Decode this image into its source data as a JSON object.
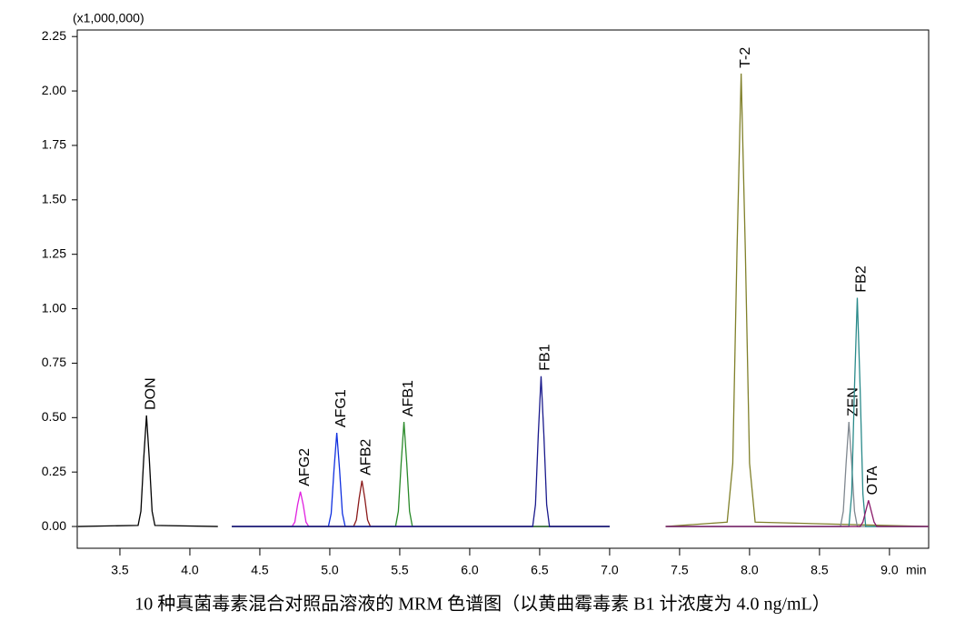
{
  "chart_data": {
    "type": "line",
    "y_unit": "(x1,000,000)",
    "x_label": "min",
    "caption": "10 种真菌毒素混合对照品溶液的 MRM 色谱图（以黄曲霉毒素 B1 计浓度为 4.0 ng/mL）",
    "xlim": [
      3.195,
      9.28
    ],
    "ylim": [
      -0.1,
      2.28
    ],
    "xticks": [
      3.5,
      {
        "value": 4,
        "label": "4.0"
      },
      4.5,
      {
        "value": 5,
        "label": "5.0"
      },
      5.5,
      {
        "value": 6,
        "label": "6.0"
      },
      6.5,
      {
        "value": 7,
        "label": "7.0"
      },
      7.5,
      {
        "value": 8,
        "label": "8.0"
      },
      8.5,
      {
        "value": 9,
        "label": "9.0"
      }
    ],
    "yticks": [
      {
        "value": 0,
        "label": "0.00"
      },
      0.25,
      {
        "value": 0.5,
        "label": "0.50"
      },
      0.75,
      {
        "value": 1,
        "label": "1.00"
      },
      1.25,
      {
        "value": 1.5,
        "label": "1.50"
      },
      1.75,
      {
        "value": 2,
        "label": "2.00"
      },
      2.25
    ],
    "series": [
      {
        "name": "DON",
        "color": "#000000",
        "x": [
          3.2,
          3.63,
          3.65,
          3.67,
          3.69,
          3.71,
          3.73,
          3.75,
          4.2
        ],
        "values": [
          0,
          0.005,
          0.07,
          0.31,
          0.51,
          0.31,
          0.07,
          0.005,
          0
        ]
      },
      {
        "name": "AFG2",
        "color": "#e020e0",
        "x": [
          4.3,
          4.73,
          4.75,
          4.77,
          4.79,
          4.81,
          4.83,
          4.85,
          7.0
        ],
        "values": [
          0,
          0,
          0.02,
          0.1,
          0.16,
          0.1,
          0.02,
          0,
          0
        ]
      },
      {
        "name": "AFG1",
        "color": "#1030e0",
        "x": [
          4.3,
          4.99,
          5.01,
          5.03,
          5.05,
          5.07,
          5.09,
          5.11,
          7.0
        ],
        "values": [
          0,
          0,
          0.06,
          0.26,
          0.43,
          0.26,
          0.06,
          0,
          0
        ]
      },
      {
        "name": "AFB2",
        "color": "#8b1a1a",
        "x": [
          4.3,
          5.17,
          5.19,
          5.21,
          5.23,
          5.25,
          5.27,
          5.29,
          7.0
        ],
        "values": [
          0,
          0,
          0.03,
          0.13,
          0.21,
          0.13,
          0.03,
          0,
          0
        ]
      },
      {
        "name": "AFB1",
        "color": "#2a8a2a",
        "x": [
          4.3,
          5.47,
          5.49,
          5.51,
          5.53,
          5.55,
          5.57,
          5.59,
          7.0
        ],
        "values": [
          0,
          0,
          0.07,
          0.29,
          0.48,
          0.29,
          0.07,
          0,
          0
        ]
      },
      {
        "name": "FB1",
        "color": "#1a1a8c",
        "x": [
          4.3,
          6.45,
          6.47,
          6.49,
          6.51,
          6.53,
          6.55,
          6.57,
          7.0
        ],
        "values": [
          0,
          0,
          0.1,
          0.42,
          0.69,
          0.42,
          0.1,
          0,
          0
        ]
      },
      {
        "name": "T-2",
        "color": "#80802a",
        "x": [
          7.4,
          7.84,
          7.88,
          7.91,
          7.94,
          7.97,
          8.0,
          8.04,
          9.28
        ],
        "values": [
          0,
          0.02,
          0.29,
          1.26,
          2.08,
          1.26,
          0.29,
          0.02,
          0
        ]
      },
      {
        "name": "ZEN",
        "color": "#808890",
        "x": [
          7.4,
          8.65,
          8.67,
          8.69,
          8.71,
          8.73,
          8.75,
          8.77,
          9.28
        ],
        "values": [
          0,
          0,
          0.07,
          0.29,
          0.48,
          0.29,
          0.07,
          0,
          0
        ]
      },
      {
        "name": "FB2",
        "color": "#2a8a8a",
        "x": [
          7.4,
          8.71,
          8.73,
          8.75,
          8.77,
          8.79,
          8.81,
          8.83,
          9.28
        ],
        "values": [
          0,
          0,
          0.15,
          0.64,
          1.05,
          0.64,
          0.15,
          0,
          0
        ]
      },
      {
        "name": "OTA",
        "color": "#8a1a6a",
        "x": [
          7.4,
          8.79,
          8.81,
          8.83,
          8.85,
          8.87,
          8.89,
          8.91,
          9.28
        ],
        "values": [
          0,
          0,
          0.02,
          0.07,
          0.12,
          0.07,
          0.02,
          0,
          0
        ]
      }
    ]
  }
}
